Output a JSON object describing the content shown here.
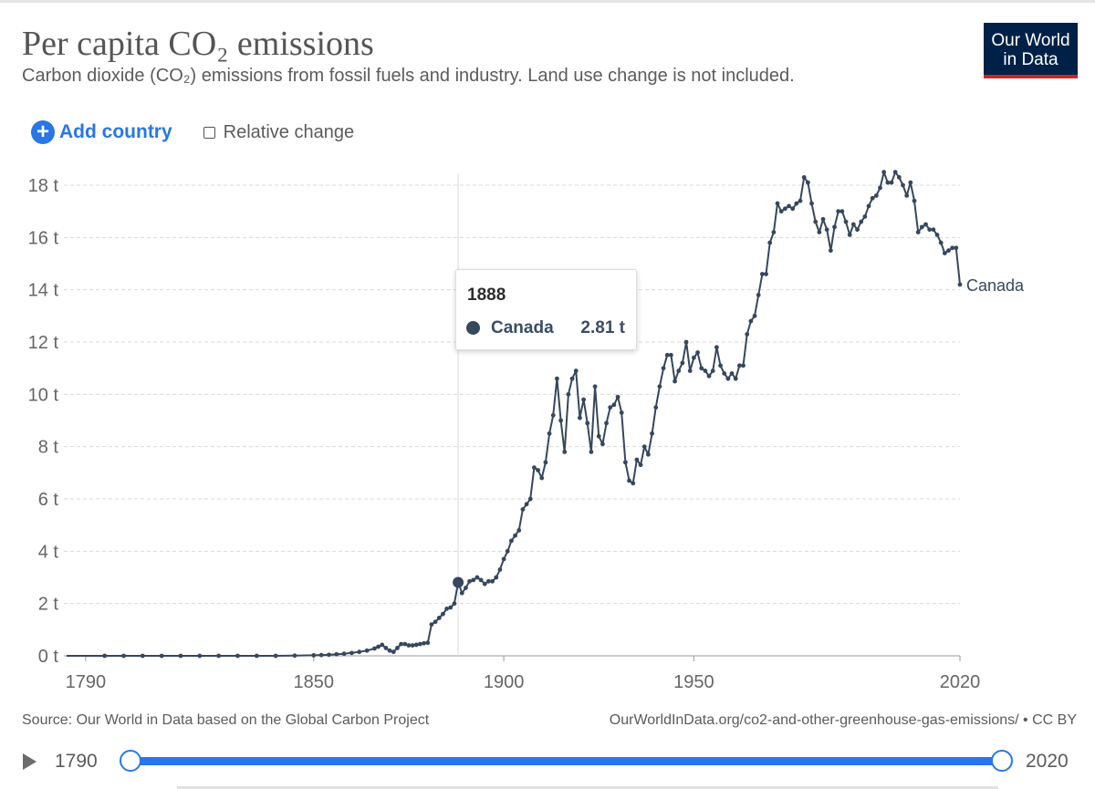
{
  "header": {
    "title": "Per capita CO₂ emissions",
    "subtitle": "Carbon dioxide (CO₂) emissions from fossil fuels and industry. Land use change is not included.",
    "logo_line1": "Our World",
    "logo_line2": "in Data"
  },
  "controls": {
    "add_country_label": "Add country",
    "relative_change_label": "Relative change"
  },
  "tooltip": {
    "year": "1888",
    "entity": "Canada",
    "value": "2.81 t"
  },
  "footer": {
    "source": "Source: Our World in Data based on the Global Carbon Project",
    "link": "OurWorldInData.org/co2-and-other-greenhouse-gas-emissions/ • CC BY"
  },
  "timeline": {
    "start_label": "1790",
    "end_label": "2020"
  },
  "colors": {
    "series": "#36475e",
    "accent": "#2876e8",
    "logo_bg": "#002147",
    "logo_stripe": "#ce261e"
  },
  "chart_data": {
    "type": "line",
    "title": "Per capita CO₂ emissions",
    "xlim": [
      1785,
      2020
    ],
    "ylim": [
      0,
      18
    ],
    "x_ticks": [
      1790,
      1850,
      1900,
      1950,
      2020
    ],
    "x_tick_labels": [
      "1790",
      "1850",
      "1900",
      "1950",
      "2020"
    ],
    "y_ticks": [
      0,
      2,
      4,
      6,
      8,
      10,
      12,
      14,
      16,
      18
    ],
    "y_tick_labels": [
      "0 t",
      "2 t",
      "4 t",
      "6 t",
      "8 t",
      "10 t",
      "12 t",
      "14 t",
      "16 t",
      "18 t"
    ],
    "grid": "horizontal dashed",
    "hover_year": 1888,
    "series": [
      {
        "name": "Canada",
        "color": "#36475e",
        "points": [
          [
            1785,
            0.0
          ],
          [
            1795,
            0.0
          ],
          [
            1800,
            0.0
          ],
          [
            1805,
            0.0
          ],
          [
            1810,
            0.0
          ],
          [
            1815,
            0.0
          ],
          [
            1820,
            0.0
          ],
          [
            1825,
            0.0
          ],
          [
            1830,
            0.0
          ],
          [
            1835,
            0.0
          ],
          [
            1840,
            0.0
          ],
          [
            1845,
            0.01
          ],
          [
            1850,
            0.02
          ],
          [
            1852,
            0.03
          ],
          [
            1854,
            0.04
          ],
          [
            1856,
            0.06
          ],
          [
            1858,
            0.08
          ],
          [
            1860,
            0.11
          ],
          [
            1862,
            0.15
          ],
          [
            1864,
            0.2
          ],
          [
            1866,
            0.28
          ],
          [
            1867,
            0.35
          ],
          [
            1868,
            0.42
          ],
          [
            1869,
            0.3
          ],
          [
            1870,
            0.2
          ],
          [
            1871,
            0.15
          ],
          [
            1872,
            0.3
          ],
          [
            1873,
            0.45
          ],
          [
            1874,
            0.45
          ],
          [
            1875,
            0.4
          ],
          [
            1876,
            0.4
          ],
          [
            1877,
            0.42
          ],
          [
            1878,
            0.45
          ],
          [
            1879,
            0.48
          ],
          [
            1880,
            0.5
          ],
          [
            1881,
            1.2
          ],
          [
            1882,
            1.3
          ],
          [
            1883,
            1.45
          ],
          [
            1884,
            1.6
          ],
          [
            1885,
            1.8
          ],
          [
            1886,
            1.85
          ],
          [
            1887,
            2.0
          ],
          [
            1888,
            2.81
          ],
          [
            1889,
            2.4
          ],
          [
            1890,
            2.6
          ],
          [
            1891,
            2.85
          ],
          [
            1892,
            2.9
          ],
          [
            1893,
            3.0
          ],
          [
            1894,
            2.9
          ],
          [
            1895,
            2.75
          ],
          [
            1896,
            2.85
          ],
          [
            1897,
            2.85
          ],
          [
            1898,
            3.0
          ],
          [
            1899,
            3.3
          ],
          [
            1900,
            3.7
          ],
          [
            1901,
            4.0
          ],
          [
            1902,
            4.4
          ],
          [
            1903,
            4.6
          ],
          [
            1904,
            4.8
          ],
          [
            1905,
            5.6
          ],
          [
            1906,
            5.8
          ],
          [
            1907,
            6.0
          ],
          [
            1908,
            7.2
          ],
          [
            1909,
            7.1
          ],
          [
            1910,
            6.8
          ],
          [
            1911,
            7.4
          ],
          [
            1912,
            8.5
          ],
          [
            1913,
            9.2
          ],
          [
            1914,
            10.6
          ],
          [
            1915,
            9.0
          ],
          [
            1916,
            7.8
          ],
          [
            1917,
            10.0
          ],
          [
            1918,
            10.6
          ],
          [
            1919,
            10.9
          ],
          [
            1920,
            9.1
          ],
          [
            1921,
            9.8
          ],
          [
            1922,
            8.9
          ],
          [
            1923,
            7.8
          ],
          [
            1924,
            10.3
          ],
          [
            1925,
            8.4
          ],
          [
            1926,
            8.1
          ],
          [
            1927,
            8.9
          ],
          [
            1928,
            9.5
          ],
          [
            1929,
            9.6
          ],
          [
            1930,
            9.9
          ],
          [
            1931,
            9.3
          ],
          [
            1932,
            7.4
          ],
          [
            1933,
            6.7
          ],
          [
            1934,
            6.6
          ],
          [
            1935,
            7.5
          ],
          [
            1936,
            7.3
          ],
          [
            1937,
            8.0
          ],
          [
            1938,
            7.7
          ],
          [
            1939,
            8.5
          ],
          [
            1940,
            9.5
          ],
          [
            1941,
            10.3
          ],
          [
            1942,
            11.0
          ],
          [
            1943,
            11.5
          ],
          [
            1944,
            11.5
          ],
          [
            1945,
            10.5
          ],
          [
            1946,
            10.9
          ],
          [
            1947,
            11.2
          ],
          [
            1948,
            12.0
          ],
          [
            1949,
            10.9
          ],
          [
            1950,
            11.4
          ],
          [
            1951,
            11.6
          ],
          [
            1952,
            11.0
          ],
          [
            1953,
            10.9
          ],
          [
            1954,
            10.7
          ],
          [
            1955,
            10.9
          ],
          [
            1956,
            11.8
          ],
          [
            1957,
            11.1
          ],
          [
            1958,
            10.8
          ],
          [
            1959,
            10.6
          ],
          [
            1960,
            10.8
          ],
          [
            1961,
            10.6
          ],
          [
            1962,
            11.1
          ],
          [
            1963,
            11.1
          ],
          [
            1964,
            12.3
          ],
          [
            1965,
            12.8
          ],
          [
            1966,
            13.0
          ],
          [
            1967,
            13.8
          ],
          [
            1968,
            14.6
          ],
          [
            1969,
            14.6
          ],
          [
            1970,
            15.8
          ],
          [
            1971,
            16.2
          ],
          [
            1972,
            17.3
          ],
          [
            1973,
            17.0
          ],
          [
            1974,
            17.1
          ],
          [
            1975,
            17.2
          ],
          [
            1976,
            17.1
          ],
          [
            1977,
            17.3
          ],
          [
            1978,
            17.4
          ],
          [
            1979,
            18.3
          ],
          [
            1980,
            18.1
          ],
          [
            1981,
            17.3
          ],
          [
            1982,
            16.6
          ],
          [
            1983,
            16.2
          ],
          [
            1984,
            16.7
          ],
          [
            1985,
            16.3
          ],
          [
            1986,
            15.5
          ],
          [
            1987,
            16.4
          ],
          [
            1988,
            17.0
          ],
          [
            1989,
            17.0
          ],
          [
            1990,
            16.6
          ],
          [
            1991,
            16.1
          ],
          [
            1992,
            16.5
          ],
          [
            1993,
            16.3
          ],
          [
            1994,
            16.6
          ],
          [
            1995,
            16.8
          ],
          [
            1996,
            17.2
          ],
          [
            1997,
            17.5
          ],
          [
            1998,
            17.6
          ],
          [
            1999,
            17.9
          ],
          [
            2000,
            18.5
          ],
          [
            2001,
            18.1
          ],
          [
            2002,
            18.1
          ],
          [
            2003,
            18.5
          ],
          [
            2004,
            18.3
          ],
          [
            2005,
            18.0
          ],
          [
            2006,
            17.6
          ],
          [
            2007,
            18.1
          ],
          [
            2008,
            17.4
          ],
          [
            2009,
            16.2
          ],
          [
            2010,
            16.4
          ],
          [
            2011,
            16.5
          ],
          [
            2012,
            16.3
          ],
          [
            2013,
            16.3
          ],
          [
            2014,
            16.1
          ],
          [
            2015,
            15.8
          ],
          [
            2016,
            15.4
          ],
          [
            2017,
            15.5
          ],
          [
            2018,
            15.6
          ],
          [
            2019,
            15.6
          ],
          [
            2020,
            14.2
          ]
        ]
      }
    ],
    "end_label": "Canada"
  }
}
